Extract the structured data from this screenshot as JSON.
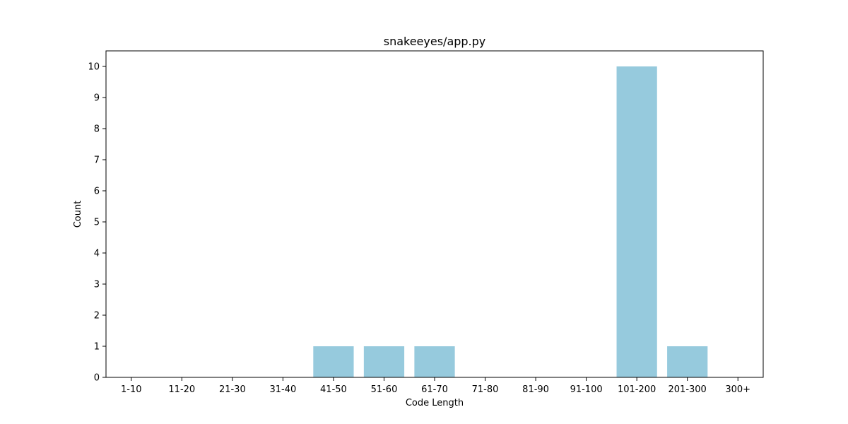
{
  "chart_data": {
    "type": "bar",
    "title": "snakeeyes/app.py",
    "xlabel": "Code Length",
    "ylabel": "Count",
    "categories": [
      "1-10",
      "11-20",
      "21-30",
      "31-40",
      "41-50",
      "51-60",
      "61-70",
      "71-80",
      "81-90",
      "91-100",
      "101-200",
      "201-300",
      "300+"
    ],
    "values": [
      0,
      0,
      0,
      0,
      1,
      1,
      1,
      0,
      0,
      0,
      10,
      1,
      0
    ],
    "ylim": [
      0,
      10.5
    ],
    "yticks": [
      0,
      1,
      2,
      3,
      4,
      5,
      6,
      7,
      8,
      9,
      10
    ],
    "grid": false,
    "bar_color": "#96cadd"
  }
}
